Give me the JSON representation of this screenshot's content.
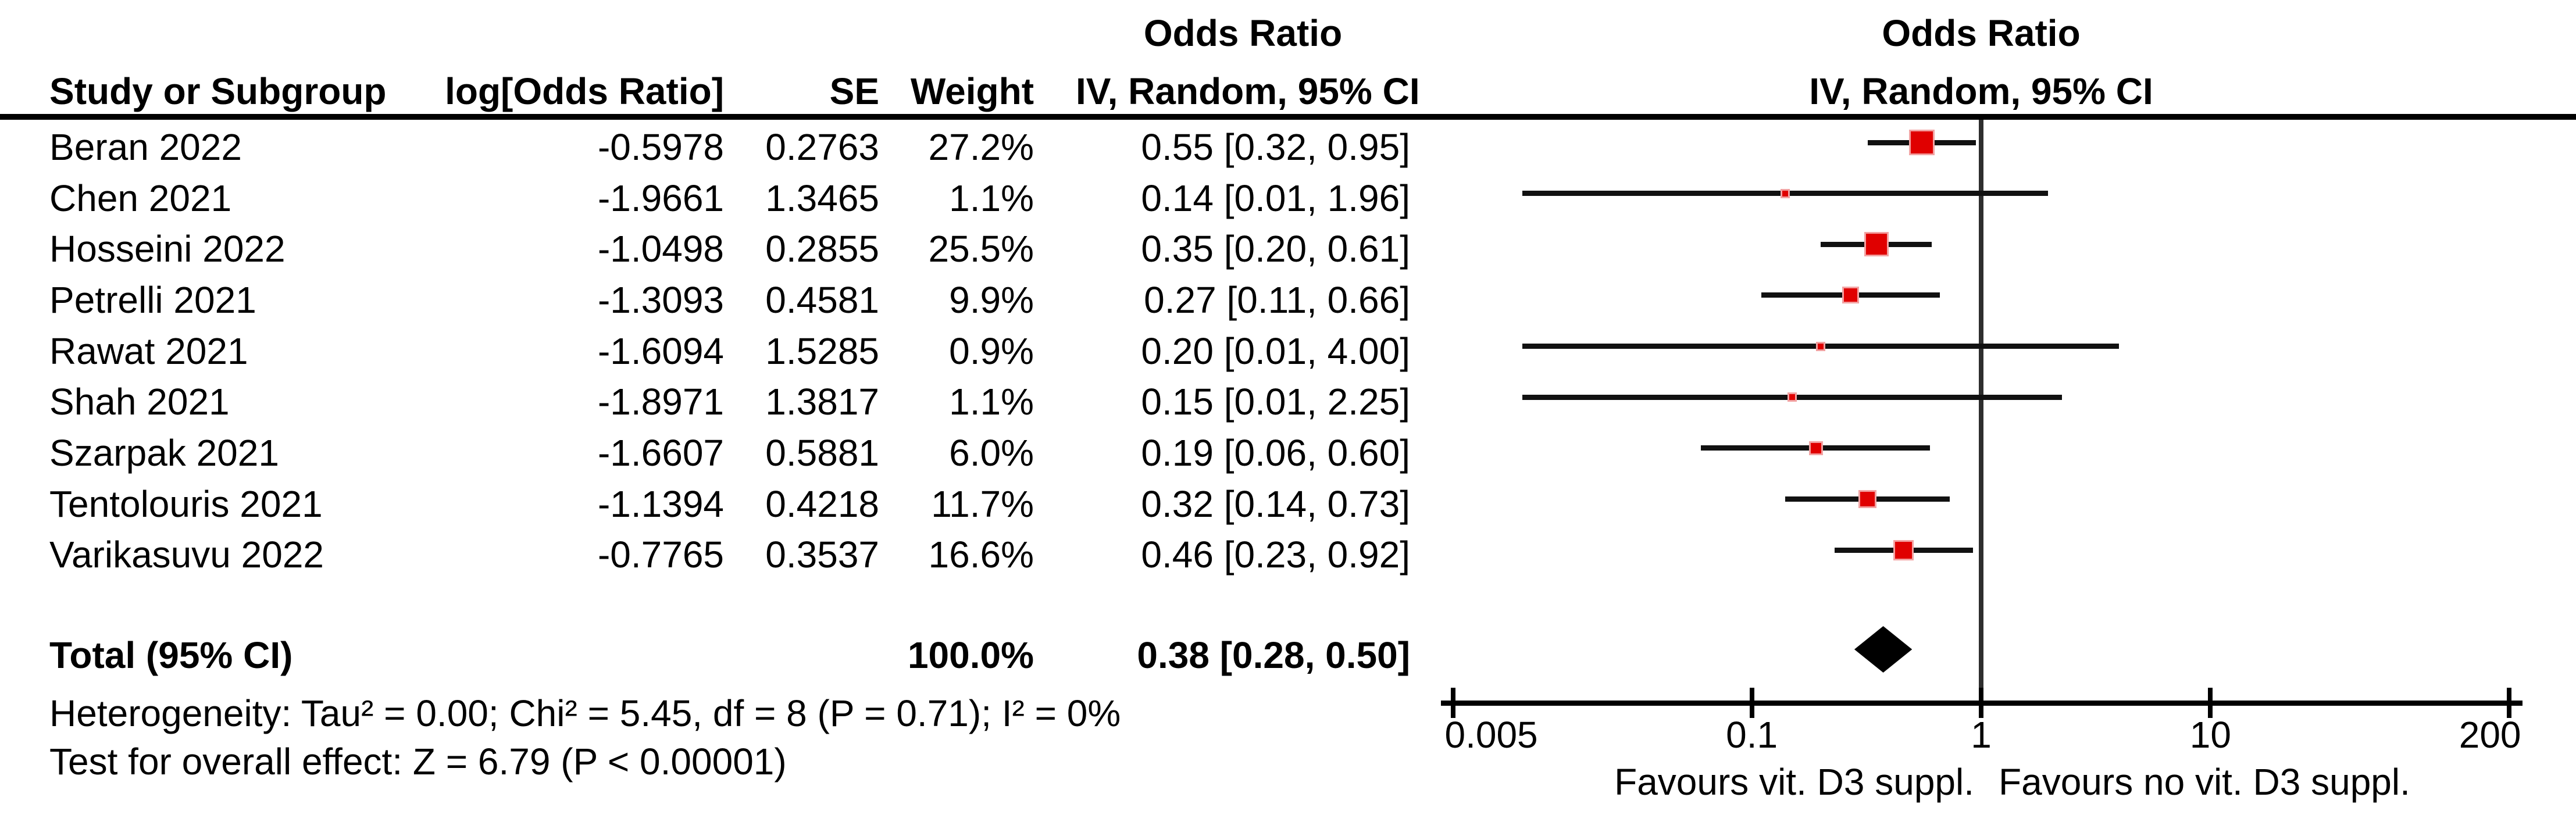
{
  "figure": {
    "table_header": {
      "study": "Study or Subgroup",
      "log_or": "log[Odds Ratio]",
      "se": "SE",
      "weight": "Weight",
      "or_title": "Odds Ratio",
      "or_subtitle": "IV, Random, 95% CI"
    },
    "plot_header": {
      "or_title": "Odds Ratio",
      "or_subtitle": "IV, Random, 95% CI"
    },
    "total": {
      "label": "Total (95% CI)",
      "weight": "100.0%",
      "ci_text": "0.38 [0.28, 0.50]"
    },
    "footnotes": {
      "heterogeneity": "Heterogeneity: Tau² = 0.00; Chi² = 5.45, df = 8 (P = 0.71); I² = 0%",
      "overall_effect": "Test for overall effect: Z = 6.79 (P < 0.00001)"
    },
    "colors": {
      "marker": "#e00000",
      "marker_border": "#f2a2a2",
      "ci_line": "#111111",
      "center_line": "#2e2e2e",
      "diamond": "#000000",
      "text": "#000000",
      "background": "#ffffff"
    }
  },
  "chart_data": {
    "type": "forest",
    "effect_measure": "Odds Ratio",
    "model": "IV, Random, 95% CI",
    "x_scale": "log10",
    "x_ticks": [
      {
        "label": "0.005",
        "value": 0.005,
        "align": "left"
      },
      {
        "label": "0.1",
        "value": 0.1,
        "align": "center"
      },
      {
        "label": "1",
        "value": 1,
        "align": "center"
      },
      {
        "label": "10",
        "value": 10,
        "align": "center"
      },
      {
        "label": "200",
        "value": 200,
        "align": "right"
      }
    ],
    "xlim": [
      0.005,
      200
    ],
    "favours_left": "Favours vit. D3 suppl.",
    "favours_right": "Favours no vit. D3 suppl.",
    "studies": [
      {
        "name": "Beran 2022",
        "log_or": "-0.5978",
        "se": "0.2763",
        "weight_text": "27.2%",
        "ci_text": "0.55 [0.32, 0.95]",
        "or": 0.55,
        "low": 0.32,
        "high": 0.95,
        "weight": 27.2
      },
      {
        "name": "Chen 2021",
        "log_or": "-1.9661",
        "se": "1.3465",
        "weight_text": "1.1%",
        "ci_text": "0.14 [0.01, 1.96]",
        "or": 0.14,
        "low": 0.01,
        "high": 1.96,
        "weight": 1.1
      },
      {
        "name": "Hosseini 2022",
        "log_or": "-1.0498",
        "se": "0.2855",
        "weight_text": "25.5%",
        "ci_text": "0.35 [0.20, 0.61]",
        "or": 0.35,
        "low": 0.2,
        "high": 0.61,
        "weight": 25.5
      },
      {
        "name": "Petrelli 2021",
        "log_or": "-1.3093",
        "se": "0.4581",
        "weight_text": "9.9%",
        "ci_text": "0.27 [0.11, 0.66]",
        "or": 0.27,
        "low": 0.11,
        "high": 0.66,
        "weight": 9.9
      },
      {
        "name": "Rawat 2021",
        "log_or": "-1.6094",
        "se": "1.5285",
        "weight_text": "0.9%",
        "ci_text": "0.20 [0.01, 4.00]",
        "or": 0.2,
        "low": 0.01,
        "high": 4.0,
        "weight": 0.9
      },
      {
        "name": "Shah 2021",
        "log_or": "-1.8971",
        "se": "1.3817",
        "weight_text": "1.1%",
        "ci_text": "0.15 [0.01, 2.25]",
        "or": 0.15,
        "low": 0.01,
        "high": 2.25,
        "weight": 1.1
      },
      {
        "name": "Szarpak 2021",
        "log_or": "-1.6607",
        "se": "0.5881",
        "weight_text": "6.0%",
        "ci_text": "0.19 [0.06, 0.60]",
        "or": 0.19,
        "low": 0.06,
        "high": 0.6,
        "weight": 6.0
      },
      {
        "name": "Tentolouris 2021",
        "log_or": "-1.1394",
        "se": "0.4218",
        "weight_text": "11.7%",
        "ci_text": "0.32 [0.14, 0.73]",
        "or": 0.32,
        "low": 0.14,
        "high": 0.73,
        "weight": 11.7
      },
      {
        "name": "Varikasuvu 2022",
        "log_or": "-0.7765",
        "se": "0.3537",
        "weight_text": "16.6%",
        "ci_text": "0.46 [0.23, 0.92]",
        "or": 0.46,
        "low": 0.23,
        "high": 0.92,
        "weight": 16.6
      }
    ],
    "pooled": {
      "label": "Total (95% CI)",
      "or": 0.38,
      "low": 0.28,
      "high": 0.5,
      "weight": 100.0,
      "ci_text": "0.38 [0.28, 0.50]",
      "weight_text": "100.0%"
    },
    "heterogeneity": {
      "tau2": "0.00",
      "chi2": "5.45",
      "df": "8",
      "p": "0.71",
      "i2": "0%"
    },
    "overall_effect": {
      "z": "6.79",
      "p": "< 0.00001"
    }
  }
}
